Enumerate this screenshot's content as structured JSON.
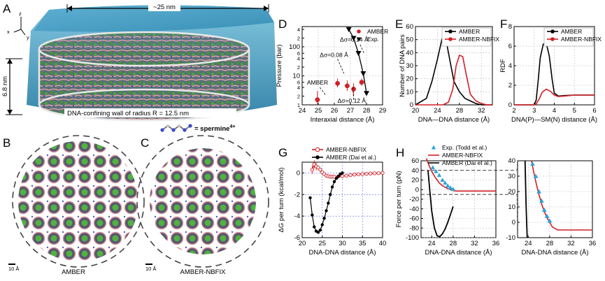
{
  "panels": {
    "A": {
      "label": "A",
      "width_text": "~25 nm",
      "height_text": "6.8 nm",
      "wall_text": "DNA-confining wall of radius R = 12.5 nm",
      "spermine_text": "= spermine",
      "spermine_sup": "4+",
      "axes": {
        "z": "z",
        "x": "x",
        "y": "y"
      }
    },
    "B": {
      "label": "B",
      "caption": "AMBER",
      "scale": "10 Å"
    },
    "C": {
      "label": "C",
      "caption": "AMBER-NBFIX",
      "scale": "10 Å"
    }
  },
  "colors": {
    "amber": "#d21f26",
    "exp": "#000000",
    "nbfix": "#d21f26",
    "dai": "#000000",
    "todd": "#2aa3dc",
    "water": "#3a9cc4",
    "dna_green": "#3c9a2b",
    "dna_pink": "#c9848a"
  },
  "chart_data": [
    {
      "id": "D",
      "label": "D",
      "type": "scatter",
      "xlabel": "Interaxial distance (Å)",
      "ylabel": "Pressure (bar)",
      "xlim": [
        24,
        29
      ],
      "yscale": "log",
      "xticks": [
        "24",
        "25",
        "26",
        "27",
        "28",
        "29"
      ],
      "yticks": [
        {
          "v": 1,
          "t": "1"
        },
        {
          "v": 2,
          "t": "2"
        },
        {
          "v": 4,
          "t": "4"
        },
        {
          "v": 6,
          "t": "6"
        },
        {
          "v": 10,
          "t": "10"
        },
        {
          "v": 20,
          "t": "2"
        },
        {
          "v": 40,
          "t": "4"
        },
        {
          "v": 60,
          "t": "6"
        },
        {
          "v": 100,
          "t": "100"
        },
        {
          "v": 200,
          "t": "2"
        },
        {
          "v": 400,
          "t": "4"
        }
      ],
      "series": [
        {
          "name": "AMBER",
          "marker": "circle",
          "x": [
            24.95,
            26.2,
            26.8,
            27.2,
            27.7
          ],
          "y": [
            1.5,
            5.5,
            4.5,
            3.5,
            6.0
          ],
          "err": [
            [
              1.0,
              3.0
            ],
            [
              4.0,
              8.0
            ],
            [
              3.0,
              7.0
            ],
            [
              2.0,
              5.5
            ],
            [
              4.5,
              8.0
            ]
          ]
        },
        {
          "name": "Exp.",
          "marker": "triangle",
          "x": [
            26.9,
            27.2,
            27.5,
            27.8,
            28.0
          ],
          "y": [
            400,
            200,
            60,
            12,
            2.5
          ]
        }
      ],
      "annotations": [
        "Δσ=0.14 Å",
        "Δσ=0.08 Å",
        "AMBER",
        "Δσ=0.12 Å"
      ]
    },
    {
      "id": "E",
      "label": "E",
      "type": "line",
      "xlabel": "DNA—DNA distance (Å)",
      "ylabel": "Number of DNA pairs",
      "xlim": [
        20,
        34
      ],
      "ylim": [
        0,
        60
      ],
      "xticks": [
        "20",
        "24",
        "28",
        "32"
      ],
      "yticks": [
        "0",
        "10",
        "20",
        "30",
        "40",
        "50",
        "60"
      ],
      "series": [
        {
          "name": "AMBER",
          "x": [
            20,
            22,
            23,
            24,
            24.8,
            25.3,
            26,
            27,
            28,
            29,
            30,
            31,
            32,
            33,
            34
          ],
          "y": [
            0,
            5,
            18,
            35,
            50,
            56,
            40,
            18,
            10,
            5,
            3,
            1,
            0,
            0,
            0
          ]
        },
        {
          "name": "AMBER-NBFIX",
          "x": [
            20,
            24,
            25,
            26,
            26.8,
            27.4,
            28,
            28.6,
            29.3,
            30,
            31,
            32,
            33,
            34
          ],
          "y": [
            0,
            0,
            0,
            2,
            12,
            30,
            38,
            37,
            22,
            8,
            3,
            1,
            0,
            0
          ]
        }
      ]
    },
    {
      "id": "F",
      "label": "F",
      "type": "line",
      "xlabel": "DNA(P)—SM(N) distance (Å)",
      "ylabel": "RDF",
      "xlim": [
        2,
        6
      ],
      "ylim": [
        0,
        8
      ],
      "xticks": [
        "2",
        "3",
        "4",
        "5",
        "6"
      ],
      "yticks": [
        "0",
        "2",
        "4",
        "6",
        "8"
      ],
      "series": [
        {
          "name": "AMBER",
          "x": [
            2,
            3,
            3.1,
            3.2,
            3.3,
            3.45,
            3.6,
            3.75,
            3.9,
            4.0,
            4.2,
            4.5,
            5,
            5.5,
            6
          ],
          "y": [
            0,
            0,
            0.5,
            2.5,
            4.8,
            6.2,
            6.3,
            5.0,
            2.5,
            1.2,
            0.9,
            0.95,
            1.0,
            1.0,
            1.0
          ]
        },
        {
          "name": "AMBER-NBFIX",
          "x": [
            2,
            3,
            3.1,
            3.25,
            3.4,
            3.6,
            3.8,
            4.0,
            4.2,
            4.5,
            5,
            5.5,
            6
          ],
          "y": [
            0,
            0,
            0.1,
            0.6,
            1.3,
            1.6,
            1.4,
            1.0,
            0.85,
            0.9,
            1.0,
            1.0,
            1.0
          ]
        }
      ]
    },
    {
      "id": "G",
      "label": "G",
      "type": "line",
      "xlabel": "DNA-DNA distance (Å)",
      "ylabel": "ΔG per turn (kcal/mol)",
      "xlim": [
        20,
        40
      ],
      "ylim": [
        -6,
        1
      ],
      "xticks": [
        "20",
        "25",
        "30",
        "35",
        "40"
      ],
      "yticks": [
        "-6",
        "-4",
        "-2",
        "0"
      ],
      "series": [
        {
          "name": "AMBER-NBFIX",
          "marker": "circle-open",
          "x": [
            22.5,
            23,
            23.5,
            24,
            24.5,
            25,
            25.5,
            26,
            26.5,
            27,
            27.5,
            28,
            29,
            30,
            31,
            32,
            33,
            34,
            35,
            36,
            37,
            38,
            39,
            40
          ],
          "y": [
            0.3,
            0.8,
            0.6,
            0.5,
            0.3,
            0.05,
            -0.1,
            -0.25,
            -0.3,
            -0.35,
            -0.35,
            -0.35,
            -0.32,
            -0.3,
            -0.25,
            -0.2,
            -0.15,
            -0.12,
            -0.1,
            -0.08,
            -0.05,
            -0.03,
            -0.02,
            0
          ]
        },
        {
          "name": "AMBER (Dai et al.)",
          "marker": "circle",
          "x": [
            22.0,
            22.5,
            23,
            23.5,
            24,
            24.5,
            25,
            25.5,
            26,
            26.5,
            27,
            27.5,
            28,
            28.5,
            29,
            29.5,
            30
          ],
          "y": [
            -2.3,
            -3.9,
            -5.0,
            -5.4,
            -5.5,
            -5.3,
            -4.8,
            -4.2,
            -3.5,
            -2.8,
            -2.0,
            -1.3,
            -0.8,
            -0.5,
            -0.3,
            -0.1,
            0
          ]
        }
      ]
    },
    {
      "id": "H",
      "label": "H",
      "type": "line",
      "xlabel": "DNA-DNA distance (Å)",
      "ylabel": "Force per turn (pN)",
      "xlim": [
        22,
        36
      ],
      "ylim": [
        -100,
        60
      ],
      "xticks": [
        "24",
        "28",
        "32",
        "36"
      ],
      "yticks": [
        "-100",
        "-80",
        "-60",
        "-40",
        "-20",
        "0",
        "20",
        "40",
        "60"
      ],
      "series": [
        {
          "name": "Exp. (Todd et al.)",
          "marker": "triangle",
          "x": [
            24.2,
            24.8,
            25.4,
            26.0,
            26.5,
            27.0,
            27.5,
            28.0
          ],
          "y": [
            46,
            38,
            30,
            20,
            14,
            8,
            4,
            1
          ]
        },
        {
          "name": "AMBER-NBFIX",
          "x": [
            23,
            23.5,
            24,
            24.5,
            25,
            25.5,
            26,
            26.5,
            27,
            27.5,
            28,
            28.5,
            29,
            29.5,
            30,
            32,
            34,
            36
          ],
          "y": [
            65,
            50,
            38,
            28,
            20,
            13,
            8,
            5,
            2,
            0,
            -2,
            -3,
            -3,
            -3,
            -3,
            -3,
            -3,
            -3
          ]
        },
        {
          "name": "AMBER (Dai et al.)",
          "x": [
            23.3,
            23.7,
            24.0,
            24.5,
            25,
            25.5,
            26,
            26.5,
            27,
            27.5,
            28
          ],
          "y": [
            40,
            -10,
            -45,
            -80,
            -96,
            -98,
            -92,
            -82,
            -68,
            -52,
            -35
          ]
        }
      ]
    },
    {
      "id": "H2",
      "label": "",
      "type": "line",
      "xlabel": "DNA-DNA distance (Å)",
      "ylabel": "",
      "xlim": [
        22,
        36
      ],
      "ylim": [
        -10,
        40
      ],
      "xticks": [
        "24",
        "28",
        "32",
        "36"
      ],
      "yticks": [
        "-10",
        "0",
        "10",
        "20",
        "30",
        "40"
      ],
      "series": [
        {
          "name": "Exp. (Todd et al.)",
          "marker": "triangle",
          "x": [
            24.8,
            25.4,
            26.0,
            26.5,
            27.0,
            27.5,
            28.0
          ],
          "y": [
            38,
            30,
            20,
            14,
            8,
            4,
            1
          ]
        },
        {
          "name": "AMBER-NBFIX",
          "x": [
            24.6,
            25,
            25.5,
            26,
            26.5,
            27,
            27.5,
            28,
            28.5,
            29,
            29.5,
            30,
            32,
            34,
            36
          ],
          "y": [
            40,
            33,
            25,
            18,
            12,
            7,
            3,
            0,
            -3,
            -4,
            -5,
            -5,
            -5,
            -5,
            -5
          ]
        },
        {
          "name": "AMBER (Dai et al.)",
          "x": [
            23.4,
            23.6,
            23.8
          ],
          "y": [
            40,
            10,
            -10
          ]
        }
      ]
    }
  ]
}
